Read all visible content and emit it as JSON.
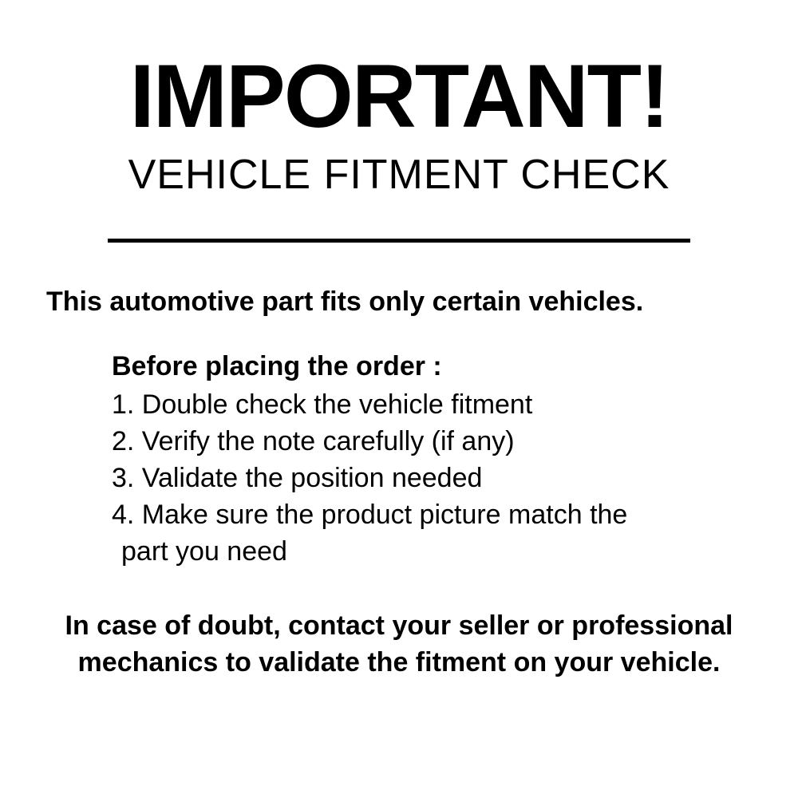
{
  "header": {
    "title": "IMPORTANT!",
    "subtitle": "VEHICLE FITMENT CHECK"
  },
  "intro": "This automotive part fits only certain vehicles.",
  "list": {
    "header": "Before placing the order :",
    "items": [
      "1. Double check the vehicle fitment",
      "2. Verify the note carefully (if any)",
      "3. Validate the position needed",
      "4. Make sure the product picture match the"
    ],
    "continuation": "part you need"
  },
  "footer": "In case of doubt, contact your seller or professional mechanics to validate the fitment on your vehicle.",
  "styling": {
    "background_color": "#ffffff",
    "text_color": "#000000",
    "divider_color": "#000000",
    "divider_width": 730,
    "divider_height": 5,
    "title_fontsize": 112,
    "title_weight": 900,
    "subtitle_fontsize": 52,
    "subtitle_weight": 500,
    "body_fontsize": 34,
    "intro_weight": 700,
    "list_header_weight": 900,
    "list_item_weight": 400,
    "footer_weight": 700,
    "font_family": "Arial, Helvetica, sans-serif"
  }
}
